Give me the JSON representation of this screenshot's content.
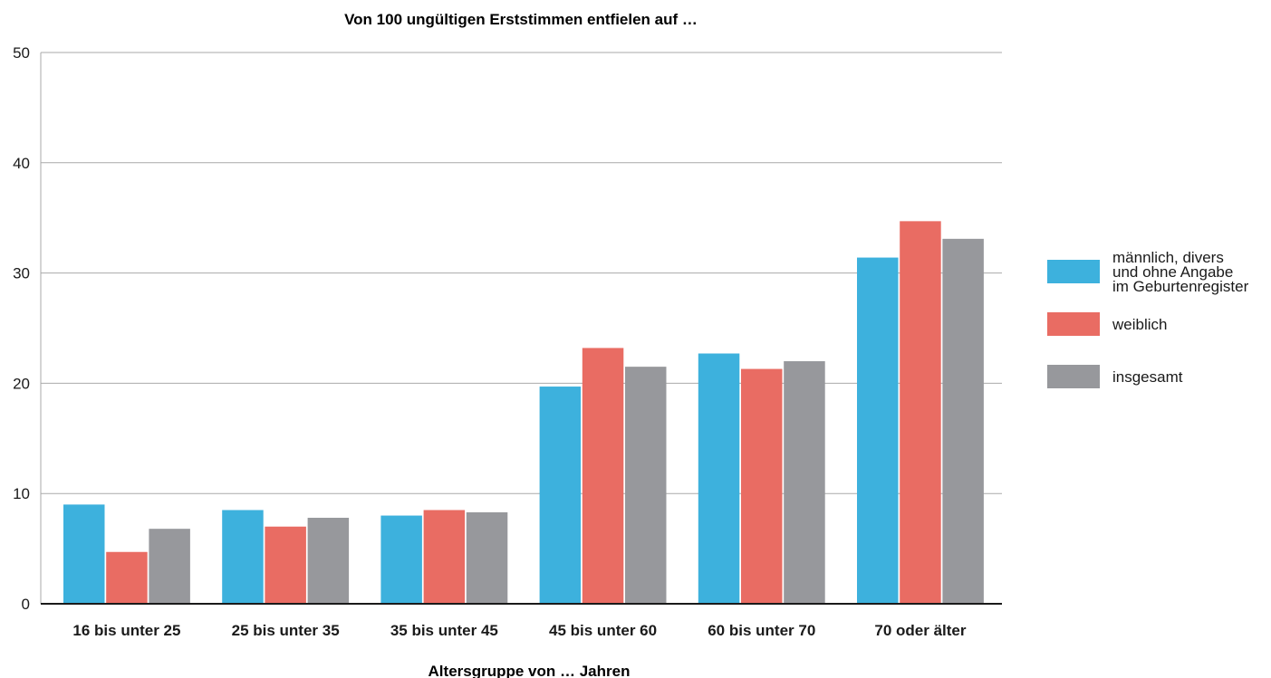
{
  "chart_data": {
    "type": "bar",
    "title": "Von 100 ungültigen Erststimmen entfielen auf …",
    "xlabel": "Altersgruppe von … Jahren",
    "ylabel": "",
    "ylim": [
      0,
      50
    ],
    "yticks": [
      0,
      10,
      20,
      30,
      40,
      50
    ],
    "grid": true,
    "legend_position": "right",
    "categories": [
      "16 bis unter 25",
      "25 bis unter 35",
      "35 bis unter 45",
      "45 bis unter 60",
      "60 bis unter 70",
      "70 oder älter"
    ],
    "series": [
      {
        "name": "männlich, divers und ohne Angabe im Geburtenregister",
        "name_lines": [
          "männlich, divers",
          "und ohne Angabe",
          "im Geburtenregister"
        ],
        "color": "#3db1dd",
        "values": [
          9.0,
          8.5,
          8.0,
          19.7,
          22.7,
          31.4
        ]
      },
      {
        "name": "weiblich",
        "name_lines": [
          "weiblich"
        ],
        "color": "#e96c63",
        "values": [
          4.7,
          7.0,
          8.5,
          23.2,
          21.3,
          34.7
        ]
      },
      {
        "name": "insgesamt",
        "name_lines": [
          "insgesamt"
        ],
        "color": "#97989c",
        "values": [
          6.8,
          7.8,
          8.3,
          21.5,
          22.0,
          33.1
        ]
      }
    ]
  }
}
